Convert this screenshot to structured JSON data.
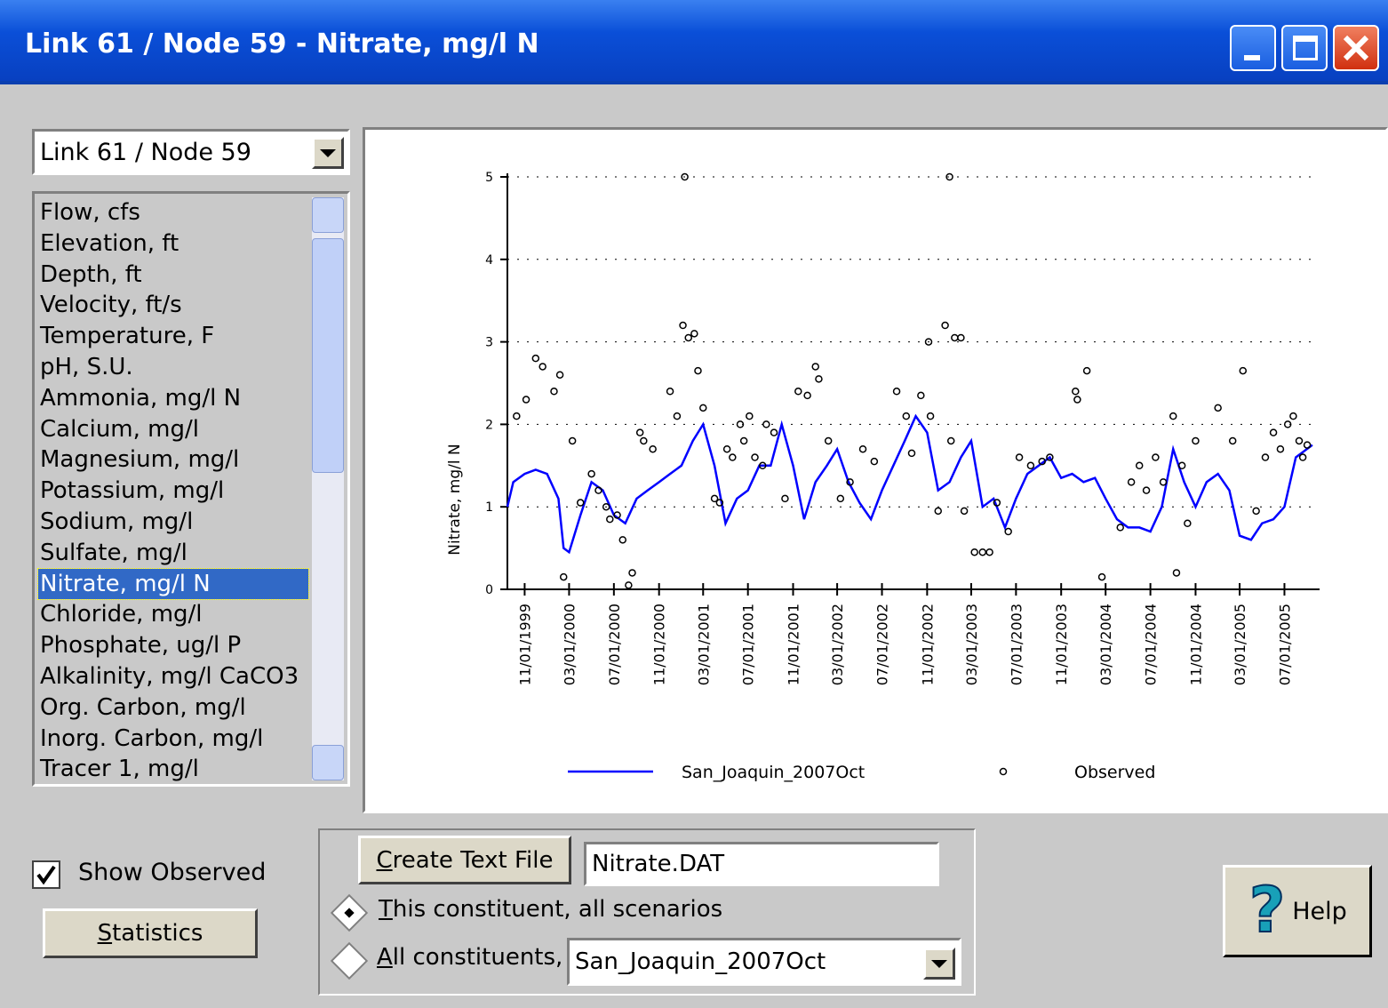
{
  "window": {
    "title": "Link 61 / Node 59 - Nitrate, mg/l N"
  },
  "location_select": "Link 61 / Node 59",
  "constituents": [
    "Flow, cfs",
    "Elevation, ft",
    "Depth, ft",
    "Velocity, ft/s",
    "Temperature, F",
    "pH, S.U.",
    "Ammonia, mg/l N",
    "Calcium, mg/l",
    "Magnesium, mg/l",
    "Potassium, mg/l",
    "Sodium, mg/l",
    "Sulfate, mg/l",
    "Nitrate, mg/l N",
    "Chloride, mg/l",
    "Phosphate, ug/l P",
    "Alkalinity, mg/l CaCO3",
    "Org. Carbon, mg/l",
    "Inorg. Carbon, mg/l",
    "Tracer 1, mg/l"
  ],
  "chart_data": {
    "type": "line",
    "y_label": "Nitrate, mg/l N",
    "xlim": [
      "09/15/1999",
      "09/25/2005"
    ],
    "xticks": [
      "11/01/1999",
      "03/01/2000",
      "07/01/2000",
      "11/01/2000",
      "03/01/2001",
      "07/01/2001",
      "11/01/2001",
      "03/01/2002",
      "07/01/2002",
      "11/01/2002",
      "03/01/2003",
      "07/01/2003",
      "11/01/2003",
      "03/01/2004",
      "07/01/2004",
      "11/01/2004",
      "03/01/2005",
      "07/01/2005"
    ],
    "ylim": [
      0,
      5
    ],
    "yticks": [
      0,
      1,
      2,
      3,
      4,
      5
    ],
    "grid": true,
    "series": [
      {
        "name": "San_Joaquin_2007Oct",
        "color": "#0000ff",
        "type": "line",
        "x": [
          "09/15/1999",
          "10/01/1999",
          "11/01/1999",
          "12/01/1999",
          "01/01/2000",
          "02/01/2000",
          "02/15/2000",
          "03/01/2000",
          "04/01/2000",
          "05/01/2000",
          "06/01/2000",
          "07/01/2000",
          "08/01/2000",
          "09/01/2000",
          "10/01/2000",
          "11/01/2000",
          "12/01/2000",
          "01/01/2001",
          "02/01/2001",
          "03/01/2001",
          "04/01/2001",
          "05/01/2001",
          "06/01/2001",
          "07/01/2001",
          "08/01/2001",
          "09/01/2001",
          "10/01/2001",
          "11/01/2001",
          "12/01/2001",
          "01/01/2002",
          "02/01/2002",
          "03/01/2002",
          "04/01/2002",
          "05/01/2002",
          "06/01/2002",
          "07/01/2002",
          "08/01/2002",
          "09/01/2002",
          "10/01/2002",
          "11/01/2002",
          "12/01/2002",
          "01/01/2003",
          "02/01/2003",
          "03/01/2003",
          "04/01/2003",
          "05/01/2003",
          "06/01/2003",
          "07/01/2003",
          "08/01/2003",
          "09/01/2003",
          "10/01/2003",
          "11/01/2003",
          "12/01/2003",
          "01/01/2004",
          "02/01/2004",
          "03/01/2004",
          "04/01/2004",
          "05/01/2004",
          "06/01/2004",
          "07/01/2004",
          "08/01/2004",
          "09/01/2004",
          "10/01/2004",
          "11/01/2004",
          "12/01/2004",
          "01/01/2005",
          "02/01/2005",
          "03/01/2005",
          "04/01/2005",
          "05/01/2005",
          "06/01/2005",
          "07/01/2005",
          "08/01/2005",
          "09/15/2005"
        ],
        "values": [
          1.0,
          1.3,
          1.4,
          1.45,
          1.4,
          1.1,
          0.5,
          0.45,
          0.9,
          1.3,
          1.2,
          0.9,
          0.8,
          1.1,
          1.2,
          1.3,
          1.4,
          1.5,
          1.8,
          2.0,
          1.5,
          0.8,
          1.1,
          1.2,
          1.5,
          1.5,
          2.0,
          1.5,
          0.85,
          1.3,
          1.5,
          1.7,
          1.3,
          1.05,
          0.85,
          1.2,
          1.5,
          1.8,
          2.1,
          1.9,
          1.2,
          1.3,
          1.6,
          1.8,
          1.0,
          1.1,
          0.75,
          1.1,
          1.4,
          1.5,
          1.6,
          1.35,
          1.4,
          1.3,
          1.35,
          1.1,
          0.85,
          0.75,
          0.75,
          0.7,
          1.0,
          1.7,
          1.3,
          1.0,
          1.3,
          1.4,
          1.2,
          0.65,
          0.6,
          0.8,
          0.85,
          1.0,
          1.6,
          1.75
        ]
      },
      {
        "name": "Observed",
        "color": "#000000",
        "type": "scatter",
        "x": [
          "10/10/1999",
          "11/05/1999",
          "12/01/1999",
          "12/20/1999",
          "01/20/2000",
          "02/05/2000",
          "02/15/2000",
          "03/10/2000",
          "04/01/2000",
          "05/01/2000",
          "05/20/2000",
          "06/10/2000",
          "06/20/2000",
          "07/10/2000",
          "07/25/2000",
          "08/10/2000",
          "08/20/2000",
          "09/10/2000",
          "09/20/2000",
          "10/15/2000",
          "12/01/2000",
          "12/20/2000",
          "01/05/2001",
          "01/10/2001",
          "01/20/2001",
          "02/05/2001",
          "02/15/2001",
          "03/01/2001",
          "04/01/2001",
          "04/15/2001",
          "05/05/2001",
          "05/20/2001",
          "06/10/2001",
          "06/20/2001",
          "07/05/2001",
          "07/20/2001",
          "08/10/2001",
          "08/20/2001",
          "09/10/2001",
          "10/10/2001",
          "11/15/2001",
          "12/10/2001",
          "01/01/2002",
          "01/10/2002",
          "02/05/2002",
          "03/10/2002",
          "04/05/2002",
          "05/10/2002",
          "06/10/2002",
          "08/10/2002",
          "09/05/2002",
          "09/20/2002",
          "10/15/2002",
          "11/05/2002",
          "11/10/2002",
          "12/01/2002",
          "12/20/2002",
          "01/01/2003",
          "01/05/2003",
          "01/15/2003",
          "02/01/2003",
          "02/10/2003",
          "03/10/2003",
          "04/01/2003",
          "04/20/2003",
          "05/10/2003",
          "06/10/2003",
          "07/10/2003",
          "08/10/2003",
          "09/10/2003",
          "10/01/2003",
          "12/10/2003",
          "12/15/2003",
          "01/10/2004",
          "02/20/2004",
          "04/10/2004",
          "05/10/2004",
          "06/01/2004",
          "06/20/2004",
          "07/15/2004",
          "08/05/2004",
          "09/01/2004",
          "09/10/2004",
          "09/25/2004",
          "10/10/2004",
          "11/01/2004",
          "01/01/2005",
          "02/10/2005",
          "03/10/2005",
          "04/15/2005",
          "05/10/2005",
          "06/01/2005",
          "06/20/2005",
          "07/10/2005",
          "07/25/2005",
          "08/10/2005",
          "08/20/2005",
          "09/01/2005"
        ],
        "values": [
          2.1,
          2.3,
          2.8,
          2.7,
          2.4,
          2.6,
          0.15,
          1.8,
          1.05,
          1.4,
          1.2,
          1.0,
          0.85,
          0.9,
          0.6,
          0.05,
          0.2,
          1.9,
          1.8,
          1.7,
          2.4,
          2.1,
          3.2,
          5.0,
          3.05,
          3.1,
          2.65,
          2.2,
          1.1,
          1.05,
          1.7,
          1.6,
          2.0,
          1.8,
          2.1,
          1.6,
          1.5,
          2.0,
          1.9,
          1.1,
          2.4,
          2.35,
          2.7,
          2.55,
          1.8,
          1.1,
          1.3,
          1.7,
          1.55,
          2.4,
          2.1,
          1.65,
          2.35,
          3.0,
          2.1,
          0.95,
          3.2,
          5.0,
          1.8,
          3.05,
          3.05,
          0.95,
          0.45,
          0.45,
          0.45,
          1.05,
          0.7,
          1.6,
          1.5,
          1.55,
          1.6,
          2.4,
          2.3,
          2.65,
          0.15,
          0.75,
          1.3,
          1.5,
          1.2,
          1.6,
          1.3,
          2.1,
          0.2,
          1.5,
          0.8,
          1.8,
          2.2,
          1.8,
          2.65,
          0.95,
          1.6,
          1.9,
          1.7,
          2.0,
          2.1,
          1.8,
          1.6,
          1.75
        ]
      }
    ]
  },
  "controls": {
    "show_observed": "Show Observed",
    "statistics": "Statistics",
    "create_text_file": "Create Text File",
    "file_name": "Nitrate.DAT",
    "radio_this": "This constituent, all scenarios",
    "radio_all": "All constituents,",
    "scenario_select": "San_Joaquin_2007Oct",
    "help": "Help"
  }
}
